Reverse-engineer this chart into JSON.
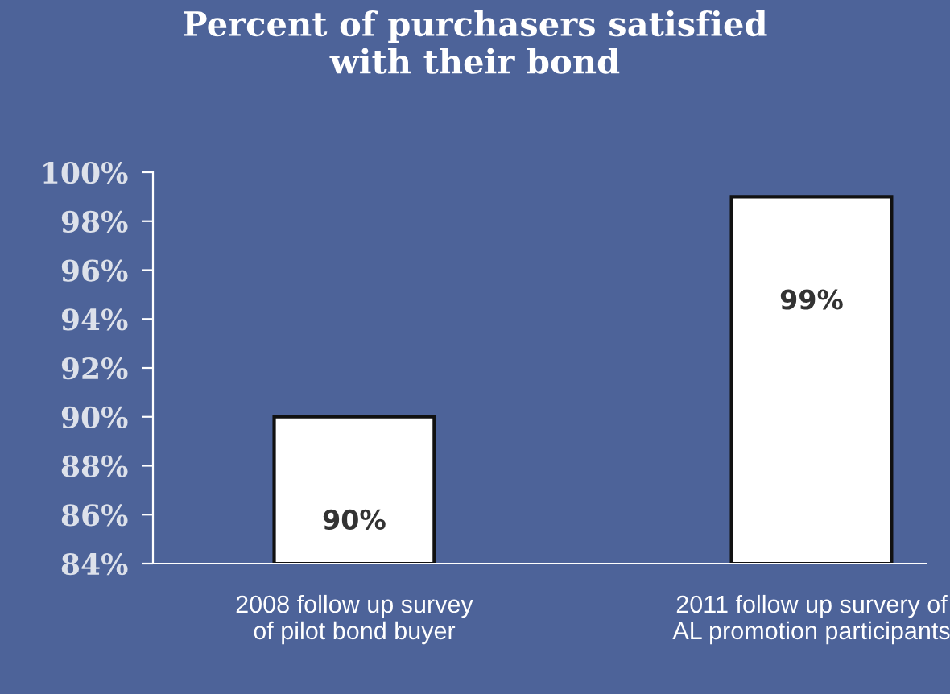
{
  "chart_data": {
    "type": "bar",
    "title": "Percent of purchasers satisfied\nwith their bond",
    "categories": [
      "2008 follow up survey\nof pilot bond buyer",
      "2011 follow up survery of\nAL promotion participants"
    ],
    "values": [
      90,
      99
    ],
    "value_labels": [
      "90%",
      "99%"
    ],
    "color": "#ffffff",
    "ylim": [
      84,
      100
    ],
    "yticks": [
      {
        "value": 84,
        "label": "84%"
      },
      {
        "value": 86,
        "label": "86%"
      },
      {
        "value": 88,
        "label": "88%"
      },
      {
        "value": 90,
        "label": "90%"
      },
      {
        "value": 92,
        "label": "92%"
      },
      {
        "value": 94,
        "label": "94%"
      },
      {
        "value": 96,
        "label": "96%"
      },
      {
        "value": 98,
        "label": "98%"
      },
      {
        "value": 100,
        "label": "100%"
      }
    ],
    "grid": false
  }
}
